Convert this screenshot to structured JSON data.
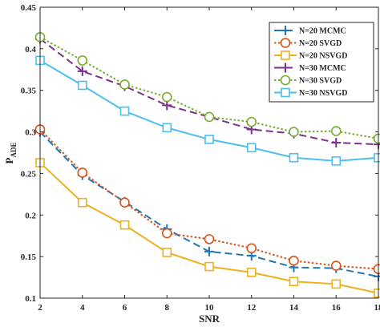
{
  "chart_data": {
    "type": "line",
    "xlabel": "SNR",
    "ylabel": "P",
    "ylabel_sub": "ADE",
    "xlim": [
      2,
      18
    ],
    "ylim": [
      0.1,
      0.45
    ],
    "xticks": [
      2,
      4,
      6,
      8,
      10,
      12,
      14,
      16,
      18
    ],
    "yticks": [
      0.1,
      0.15,
      0.2,
      0.25,
      0.3,
      0.35,
      0.4,
      0.45
    ],
    "ytick_labels": [
      "0.1",
      "0.15",
      "0.2",
      "0.25",
      "0.3",
      "0.35",
      "0.4",
      "0.45"
    ],
    "grid": false,
    "legend_position": "top-right",
    "x": [
      2,
      4,
      6,
      8,
      10,
      12,
      14,
      16,
      18
    ],
    "series": [
      {
        "name": "N=20 MCMC",
        "color": "#1f77b4",
        "marker": "plus",
        "line": "dashed",
        "values": [
          0.3,
          0.248,
          0.216,
          0.183,
          0.156,
          0.151,
          0.137,
          0.136,
          0.126
        ]
      },
      {
        "name": "N=20 SVGD",
        "color": "#d95319",
        "marker": "circle",
        "line": "dotted",
        "values": [
          0.303,
          0.251,
          0.215,
          0.178,
          0.171,
          0.16,
          0.145,
          0.139,
          0.135
        ]
      },
      {
        "name": "N=20 NSVGD",
        "color": "#edb120",
        "marker": "square",
        "line": "solid",
        "values": [
          0.263,
          0.215,
          0.188,
          0.155,
          0.138,
          0.131,
          0.12,
          0.117,
          0.106
        ]
      },
      {
        "name": "N=30 MCMC",
        "color": "#7e2f8e",
        "marker": "plus",
        "line": "dashed",
        "values": [
          0.412,
          0.373,
          0.355,
          0.332,
          0.318,
          0.303,
          0.298,
          0.287,
          0.285
        ]
      },
      {
        "name": "N=30 SVGD",
        "color": "#77ac30",
        "marker": "circle",
        "line": "dotted",
        "values": [
          0.414,
          0.386,
          0.357,
          0.342,
          0.318,
          0.312,
          0.3,
          0.301,
          0.292
        ]
      },
      {
        "name": "N=30 NSVGD",
        "color": "#4dbeee",
        "marker": "square",
        "line": "solid",
        "values": [
          0.386,
          0.356,
          0.325,
          0.305,
          0.291,
          0.281,
          0.269,
          0.265,
          0.269
        ]
      }
    ]
  }
}
